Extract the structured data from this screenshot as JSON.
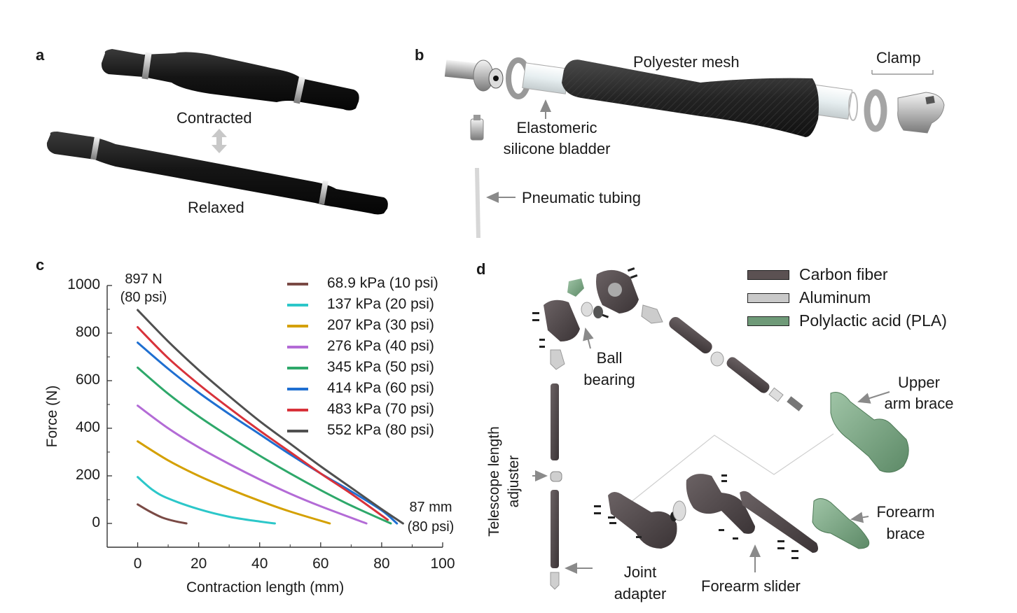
{
  "panels": {
    "a": {
      "letter": "a",
      "contracted": "Contracted",
      "relaxed": "Relaxed"
    },
    "b": {
      "letter": "b",
      "polyester_mesh": "Polyester mesh",
      "clamp": "Clamp",
      "bladder_line1": "Elastomeric",
      "bladder_line2": "silicone bladder",
      "tubing": "Pneumatic tubing"
    },
    "c": {
      "letter": "c",
      "annotation_top_line1": "897 N",
      "annotation_top_line2": "(80 psi)",
      "annotation_end_line1": "87 mm",
      "annotation_end_line2": "(80 psi)"
    },
    "d": {
      "letter": "d",
      "materials": [
        {
          "label": "Carbon fiber",
          "color": "#5b5152"
        },
        {
          "label": "Aluminum",
          "color": "#c9c9c9"
        },
        {
          "label": "Polylactic acid (PLA)",
          "color": "#6f9a78"
        }
      ],
      "ball_bearing_line1": "Ball",
      "ball_bearing_line2": "bearing",
      "upper_arm_line1": "Upper",
      "upper_arm_line2": "arm brace",
      "telescope_line1": "Telescope length",
      "telescope_line2": "adjuster",
      "forearm_brace_line1": "Forearm",
      "forearm_brace_line2": "brace",
      "joint_adapter_line1": "Joint",
      "joint_adapter_line2": "adapter",
      "forearm_slider": "Forearm slider"
    }
  },
  "chart_data": {
    "type": "line",
    "xlabel": "Contraction length (mm)",
    "ylabel": "Force (N)",
    "xlim": [
      -10,
      100
    ],
    "ylim": [
      -100,
      1000
    ],
    "xticks": [
      0,
      20,
      40,
      60,
      80,
      100
    ],
    "yticks": [
      0,
      200,
      400,
      600,
      800,
      1000
    ],
    "legend_position": "top-right",
    "series": [
      {
        "name": "68.9 kPa (10 psi)",
        "color": "#7a4a45",
        "x": [
          0,
          4,
          8,
          12,
          16
        ],
        "y": [
          80,
          50,
          25,
          10,
          0
        ]
      },
      {
        "name": "137 kPa (20 psi)",
        "color": "#2cc7c9",
        "x": [
          0,
          5,
          10,
          20,
          30,
          40,
          45
        ],
        "y": [
          195,
          140,
          105,
          60,
          28,
          8,
          0
        ]
      },
      {
        "name": "207 kPa (30 psi)",
        "color": "#d4a000",
        "x": [
          0,
          10,
          20,
          30,
          40,
          50,
          63
        ],
        "y": [
          345,
          265,
          200,
          145,
          95,
          50,
          0
        ]
      },
      {
        "name": "276 kPa (40 psi)",
        "color": "#b36bd6",
        "x": [
          0,
          10,
          20,
          30,
          40,
          50,
          60,
          75
        ],
        "y": [
          495,
          400,
          320,
          250,
          185,
          125,
          72,
          0
        ]
      },
      {
        "name": "345 kPa (50 psi)",
        "color": "#2ea86a",
        "x": [
          0,
          10,
          20,
          30,
          40,
          50,
          60,
          70,
          83
        ],
        "y": [
          655,
          545,
          450,
          365,
          285,
          210,
          140,
          75,
          0
        ]
      },
      {
        "name": "414 kPa (60 psi)",
        "color": "#1f6fd1",
        "x": [
          0,
          10,
          20,
          30,
          40,
          50,
          60,
          70,
          80,
          85
        ],
        "y": [
          760,
          650,
          550,
          460,
          375,
          290,
          210,
          135,
          55,
          0
        ]
      },
      {
        "name": "483 kPa (70 psi)",
        "color": "#d8323a",
        "x": [
          0,
          10,
          20,
          30,
          40,
          50,
          60,
          70,
          82
        ],
        "y": [
          825,
          695,
          585,
          485,
          390,
          300,
          210,
          125,
          15
        ]
      },
      {
        "name": "552 kPa (80 psi)",
        "color": "#505050",
        "x": [
          0,
          10,
          20,
          30,
          40,
          50,
          60,
          70,
          80,
          87
        ],
        "y": [
          897,
          765,
          645,
          535,
          430,
          335,
          240,
          150,
          60,
          0
        ]
      }
    ]
  }
}
